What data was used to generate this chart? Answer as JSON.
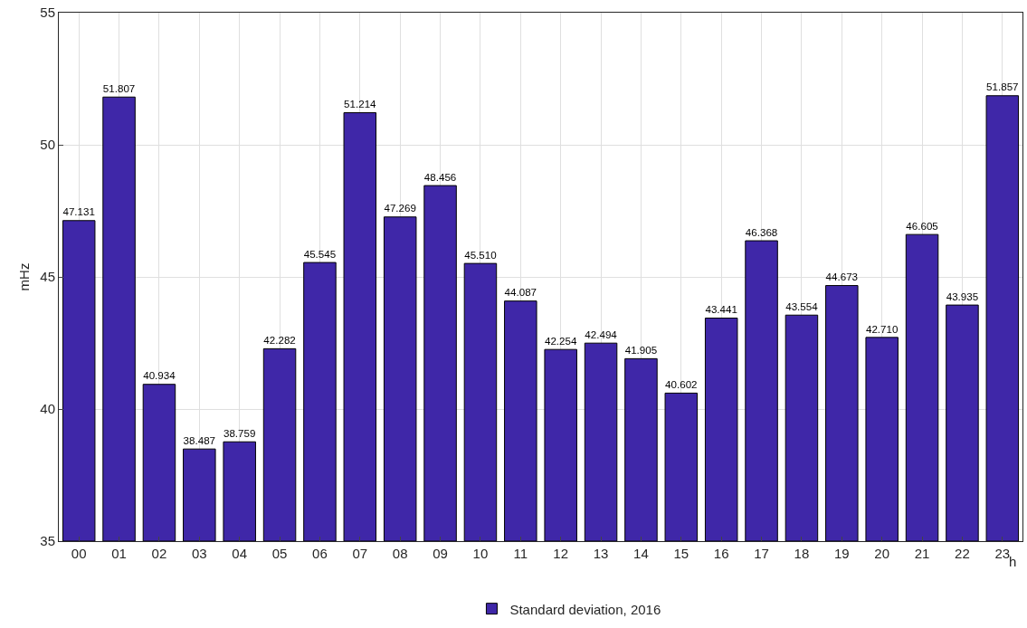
{
  "chart_data": {
    "type": "bar",
    "xlabel": "h",
    "ylabel": "mHz",
    "categories": [
      "00",
      "01",
      "02",
      "03",
      "04",
      "05",
      "06",
      "07",
      "08",
      "09",
      "10",
      "11",
      "12",
      "13",
      "14",
      "15",
      "16",
      "17",
      "18",
      "19",
      "20",
      "21",
      "22",
      "23"
    ],
    "series": [
      {
        "name": "Standard deviation, 2016",
        "color": "#3f27a8",
        "values": [
          47.131,
          51.807,
          40.934,
          38.487,
          38.759,
          42.282,
          45.545,
          51.214,
          47.269,
          48.456,
          45.51,
          44.087,
          42.254,
          42.494,
          41.905,
          40.602,
          43.441,
          46.368,
          43.554,
          44.673,
          42.71,
          46.605,
          43.935,
          51.857
        ],
        "value_labels": [
          "47.131",
          "51.807",
          "40.934",
          "38.487",
          "38.759",
          "42.282",
          "45.545",
          "51.214",
          "47.269",
          "48.456",
          "45.510",
          "44.087",
          "42.254",
          "42.494",
          "41.905",
          "40.602",
          "43.441",
          "46.368",
          "43.554",
          "44.673",
          "42.710",
          "46.605",
          "43.935",
          "51.857"
        ]
      }
    ],
    "ylim": [
      35,
      55
    ],
    "yticks": [
      35,
      40,
      45,
      50,
      55
    ],
    "grid": true,
    "legend": "bottom"
  }
}
